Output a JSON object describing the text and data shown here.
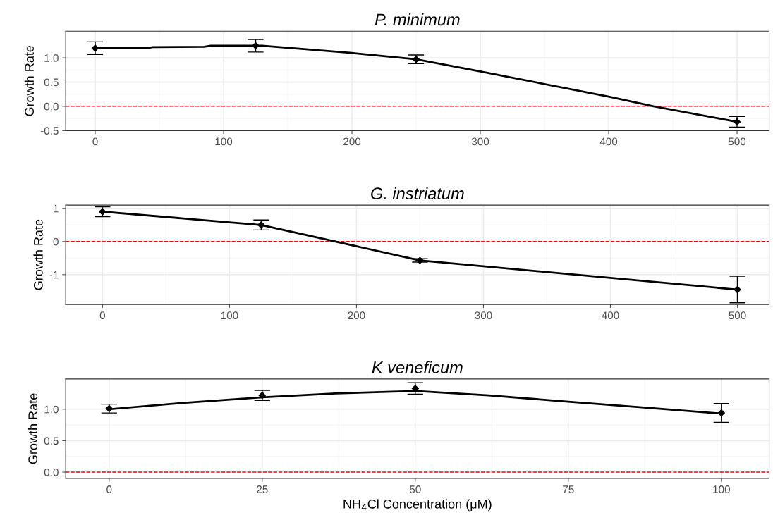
{
  "chart_data": [
    {
      "type": "scatter",
      "title": "P. minimum",
      "ylabel": "Growth Rate",
      "xlim": [
        -23,
        525
      ],
      "xticks": [
        0,
        100,
        200,
        300,
        400,
        500
      ],
      "ylim": [
        -0.5,
        1.55
      ],
      "yticks": [
        {
          "value": -0.5,
          "label": "-0.5"
        },
        {
          "value": 0,
          "label": "0.0"
        },
        0.5,
        {
          "value": 1,
          "label": "1.0"
        }
      ],
      "grid": true,
      "series": [
        {
          "type": "line",
          "color": "#000000",
          "x": [
            0,
            40,
            45,
            85,
            90,
            130,
            200,
            250,
            300,
            400,
            435,
            500
          ],
          "values": [
            1.2,
            1.2,
            1.22,
            1.23,
            1.25,
            1.25,
            1.1,
            0.97,
            0.72,
            0.2,
            0.0,
            -0.32
          ]
        },
        {
          "marker": "diamond",
          "color": "#000000",
          "x": [
            0,
            125,
            250,
            500
          ],
          "values": [
            1.2,
            1.25,
            0.97,
            -0.32
          ],
          "errors": [
            0.13,
            0.13,
            0.09,
            0.11
          ]
        }
      ],
      "ref_lines": [
        {
          "axis": "y",
          "value": 0,
          "color": "#ff0000",
          "line_style": "dashed"
        }
      ]
    },
    {
      "type": "scatter",
      "title": "G. instriatum",
      "ylabel": "Growth Rate",
      "xlim": [
        -29,
        525
      ],
      "xticks": [
        0,
        100,
        200,
        300,
        400,
        500
      ],
      "ylim": [
        -1.9,
        1.1
      ],
      "yticks": [
        {
          "value": -1,
          "label": "-1"
        },
        0,
        1
      ],
      "grid": true,
      "series": [
        {
          "type": "line",
          "color": "#000000",
          "x": [
            0,
            125,
            250,
            500
          ],
          "values": [
            0.9,
            0.5,
            -0.57,
            -1.45
          ]
        },
        {
          "marker": "diamond",
          "color": "#000000",
          "x": [
            0,
            125,
            250,
            500
          ],
          "values": [
            0.9,
            0.5,
            -0.57,
            -1.45
          ],
          "errors": [
            0.15,
            0.15,
            0.05,
            0.4
          ]
        }
      ],
      "ref_lines": [
        {
          "axis": "y",
          "value": 0,
          "color": "#ff0000",
          "line_style": "dashed"
        }
      ]
    },
    {
      "type": "scatter",
      "title": "K veneficum",
      "ylabel": "Growth Rate",
      "xlabel": "NH$_{4}$Cl Concentration (μM)",
      "xlim": [
        -7.1,
        107.8
      ],
      "xticks": [
        0,
        25,
        50,
        75,
        100
      ],
      "ylim": [
        -0.1,
        1.48
      ],
      "yticks": [
        {
          "value": 0,
          "label": "0.0"
        },
        0.5,
        {
          "value": 1,
          "label": "1.0"
        }
      ],
      "grid": true,
      "series": [
        {
          "type": "line",
          "color": "#000000",
          "x": [
            0,
            12,
            25,
            37,
            50,
            62,
            75,
            87,
            100
          ],
          "values": [
            1.0,
            1.1,
            1.19,
            1.25,
            1.29,
            1.22,
            1.12,
            1.03,
            0.93
          ]
        },
        {
          "marker": "diamond",
          "color": "#000000",
          "x": [
            0,
            25,
            50,
            100
          ],
          "values": [
            1.01,
            1.22,
            1.33,
            0.94
          ],
          "errors": [
            0.07,
            0.08,
            0.09,
            0.15
          ]
        }
      ],
      "ref_lines": [
        {
          "axis": "y",
          "value": 0,
          "color": "#ff0000",
          "line_style": "dashed"
        }
      ]
    }
  ]
}
